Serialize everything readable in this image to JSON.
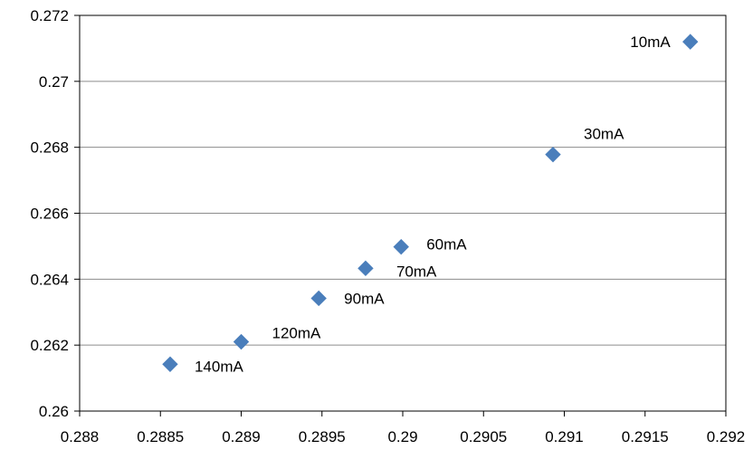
{
  "chart_data": {
    "type": "scatter",
    "title": "",
    "xlabel": "",
    "ylabel": "",
    "xlim": [
      0.288,
      0.292
    ],
    "ylim": [
      0.26,
      0.272
    ],
    "x_ticks": [
      "0.288",
      "0.2885",
      "0.289",
      "0.2895",
      "0.29",
      "0.2905",
      "0.291",
      "0.2915",
      "0.292"
    ],
    "y_ticks": [
      "0.26",
      "0.262",
      "0.264",
      "0.266",
      "0.268",
      "0.27",
      "0.272"
    ],
    "grid": "horizontal",
    "legend": "none",
    "marker": "diamond",
    "marker_color": "#4a7ebb",
    "points": [
      {
        "label": "10mA",
        "x": 0.29178,
        "y": 0.2712
      },
      {
        "label": "30mA",
        "x": 0.29093,
        "y": 0.26778
      },
      {
        "label": "60mA",
        "x": 0.28999,
        "y": 0.26498
      },
      {
        "label": "70mA",
        "x": 0.28977,
        "y": 0.26433
      },
      {
        "label": "90mA",
        "x": 0.28948,
        "y": 0.26342
      },
      {
        "label": "120mA",
        "x": 0.289,
        "y": 0.2621
      },
      {
        "label": "140mA",
        "x": 0.28856,
        "y": 0.26142
      }
    ]
  }
}
